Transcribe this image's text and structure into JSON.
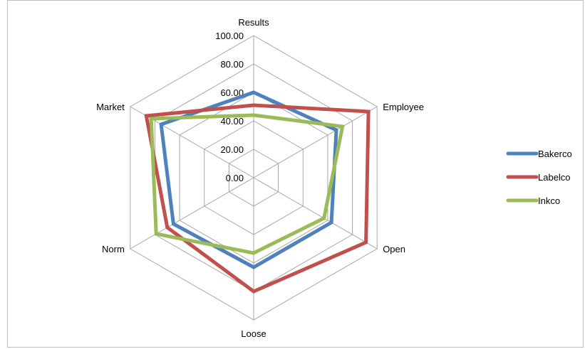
{
  "chart_data": {
    "type": "radar",
    "axes": [
      "Results",
      "Employee",
      "Open",
      "Loose",
      "Norm",
      "Market"
    ],
    "rlim": [
      0,
      100
    ],
    "ticks": [
      "0.00",
      "20.00",
      "40.00",
      "60.00",
      "80.00",
      "100.00"
    ],
    "tick_values": [
      0,
      20,
      40,
      60,
      80,
      100
    ],
    "grid": true,
    "legend_position": "right",
    "series": [
      {
        "name": "Bakerco",
        "color": "#4f81bd",
        "values": [
          60,
          67,
          63,
          63,
          65,
          75
        ]
      },
      {
        "name": "Labelco",
        "color": "#c0504d",
        "values": [
          51,
          93,
          91,
          80,
          70,
          87
        ]
      },
      {
        "name": "Inkco",
        "color": "#9bbb59",
        "values": [
          44,
          72,
          57,
          53,
          79,
          83
        ]
      }
    ]
  }
}
